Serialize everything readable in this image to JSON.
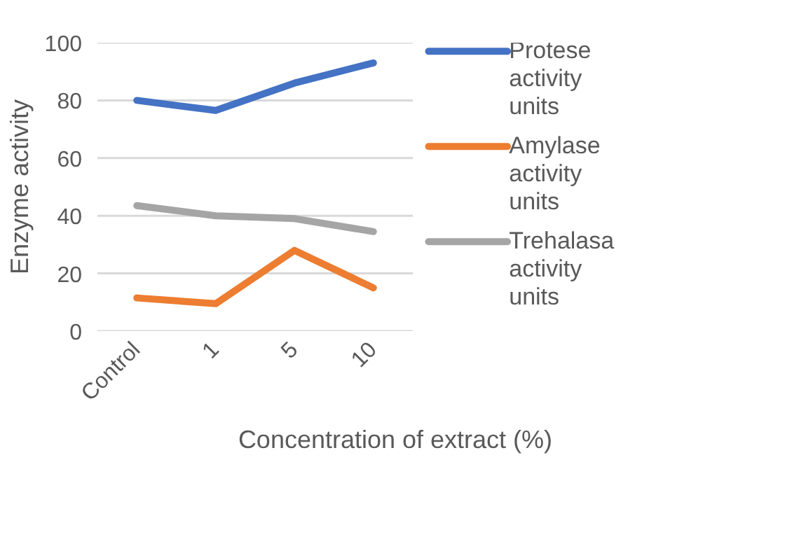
{
  "chart_data": {
    "type": "line",
    "xlabel": "Concentration of extract (%)",
    "ylabel": "Enzyme activity",
    "categories": [
      "Control",
      "1",
      "5",
      "10"
    ],
    "series": [
      {
        "name": "Protese activity units",
        "color": "#4472c4",
        "values": [
          80,
          76.5,
          86,
          93
        ]
      },
      {
        "name": "Amylase activity units",
        "color": "#ed7d31",
        "values": [
          11.5,
          9.5,
          28,
          15
        ]
      },
      {
        "name": "Trehalasa activity units",
        "color": "#a5a5a5",
        "values": [
          43.5,
          40,
          39,
          34.5
        ]
      }
    ],
    "ylim": [
      0,
      100
    ],
    "yticks": [
      0,
      20,
      40,
      60,
      80,
      100
    ],
    "grid": "y",
    "legend": "right",
    "marker": "none",
    "line_style": "solid"
  }
}
